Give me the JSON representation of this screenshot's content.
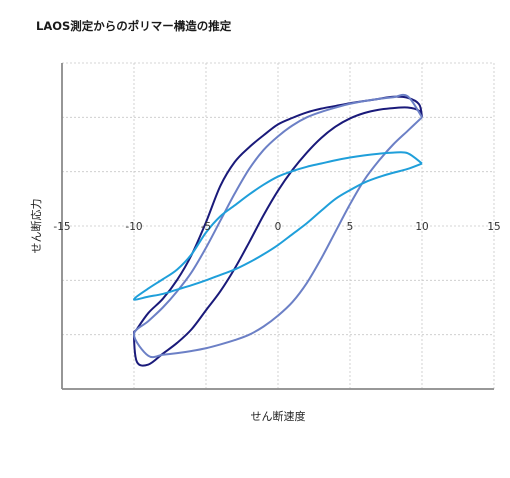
{
  "chart_data": {
    "type": "line",
    "title": "LAOS測定からのポリマー構造の推定",
    "xlabel": "せん断速度",
    "ylabel": "せん断応力",
    "xlim": [
      -15,
      15
    ],
    "ylim": [
      -3,
      3
    ],
    "xticks": [
      "-15",
      "-10",
      "-5",
      "0",
      "5",
      "10",
      "15"
    ],
    "grid": true,
    "legend": "none",
    "series": [
      {
        "color": "#1a1a7a",
        "x": [
          10.0,
          9.8,
          9.0,
          8.0,
          7.0,
          6.0,
          5.0,
          4.0,
          3.0,
          2.0,
          1.0,
          0.0,
          -1.0,
          -2.0,
          -3.0,
          -4.0,
          -5.0,
          -6.0,
          -7.0,
          -8.0,
          -9.0,
          -9.8,
          -10.0,
          -9.8,
          -9.0,
          -8.0,
          -7.0,
          -6.0,
          -5.0,
          -4.0,
          -3.0,
          -2.0,
          -1.0,
          0.0,
          1.0,
          2.0,
          3.0,
          4.0,
          5.0,
          6.0,
          7.0,
          8.0,
          9.0,
          9.8,
          10.0
        ],
        "y": [
          2.0,
          2.12,
          2.18,
          2.17,
          2.14,
          2.08,
          1.98,
          1.83,
          1.62,
          1.35,
          1.03,
          0.65,
          0.2,
          -0.3,
          -0.78,
          -1.2,
          -1.55,
          -1.9,
          -2.15,
          -2.35,
          -2.55,
          -2.5,
          -2.0,
          -1.9,
          -1.6,
          -1.34,
          -0.99,
          -0.53,
          0.07,
          0.74,
          1.18,
          1.45,
          1.67,
          1.87,
          1.99,
          2.09,
          2.16,
          2.21,
          2.26,
          2.3,
          2.34,
          2.38,
          2.36,
          2.24,
          2.0
        ]
      },
      {
        "color": "#6c80c6",
        "x": [
          10.0,
          9.0,
          8.0,
          7.0,
          6.0,
          5.0,
          4.0,
          3.0,
          2.0,
          1.0,
          0.0,
          -1.0,
          -2.0,
          -3.0,
          -4.0,
          -5.0,
          -6.0,
          -7.0,
          -8.0,
          -9.0,
          -10.0,
          -9.0,
          -8.0,
          -7.0,
          -6.0,
          -5.0,
          -4.0,
          -3.0,
          -2.0,
          -1.0,
          0.0,
          1.0,
          2.0,
          3.0,
          4.0,
          5.0,
          6.0,
          7.0,
          8.0,
          9.0,
          10.0
        ],
        "y": [
          2.0,
          1.75,
          1.5,
          1.2,
          0.85,
          0.4,
          -0.1,
          -0.6,
          -1.05,
          -1.4,
          -1.65,
          -1.85,
          -2.0,
          -2.1,
          -2.18,
          -2.25,
          -2.3,
          -2.34,
          -2.37,
          -2.39,
          -2.0,
          -1.75,
          -1.5,
          -1.2,
          -0.85,
          -0.4,
          0.1,
          0.6,
          1.05,
          1.4,
          1.65,
          1.85,
          2.0,
          2.1,
          2.18,
          2.25,
          2.3,
          2.34,
          2.37,
          2.39,
          2.0
        ]
      },
      {
        "color": "#1f9fda",
        "x": [
          10.0,
          9.0,
          8.0,
          7.0,
          6.0,
          5.0,
          4.0,
          3.0,
          2.0,
          1.0,
          0.0,
          -1.0,
          -2.0,
          -3.0,
          -4.0,
          -5.0,
          -6.0,
          -7.0,
          -8.0,
          -9.0,
          -10.0,
          -9.0,
          -8.0,
          -7.0,
          -6.0,
          -5.0,
          -4.0,
          -3.0,
          -2.0,
          -1.0,
          0.0,
          1.0,
          2.0,
          3.0,
          4.0,
          5.0,
          6.0,
          7.0,
          8.0,
          9.0,
          10.0
        ],
        "y": [
          1.15,
          1.05,
          0.98,
          0.9,
          0.8,
          0.66,
          0.5,
          0.28,
          0.05,
          -0.15,
          -0.35,
          -0.52,
          -0.67,
          -0.8,
          -0.9,
          -1.0,
          -1.09,
          -1.17,
          -1.25,
          -1.3,
          -1.35,
          -1.15,
          -0.98,
          -0.8,
          -0.52,
          -0.12,
          0.18,
          0.38,
          0.58,
          0.76,
          0.91,
          1.01,
          1.09,
          1.15,
          1.21,
          1.26,
          1.3,
          1.33,
          1.35,
          1.34,
          1.15
        ]
      }
    ]
  }
}
